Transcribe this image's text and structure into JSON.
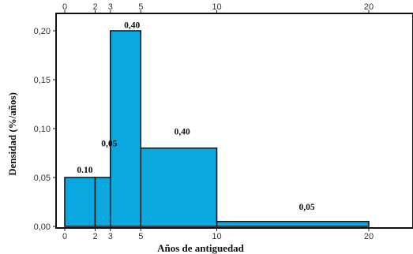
{
  "chart_data": {
    "type": "bar",
    "title": "",
    "xlabel": "Años de antiguedad",
    "ylabel": "Densidad (%/años)",
    "xlim": [
      0,
      20
    ],
    "ylim": [
      0,
      0.2
    ],
    "grid": false,
    "x_ticks": [
      0,
      2,
      3,
      5,
      10,
      20
    ],
    "y_ticks": [
      "0,00",
      "0,05",
      "0,10",
      "0,15",
      "0,20"
    ],
    "y_tick_values": [
      0,
      0.05,
      0.1,
      0.15,
      0.2
    ],
    "bars": [
      {
        "x0": 0,
        "x1": 2,
        "density": 0.05
      },
      {
        "x0": 2,
        "x1": 3,
        "density": 0.05
      },
      {
        "x0": 3,
        "x1": 5,
        "density": 0.2
      },
      {
        "x0": 5,
        "x1": 10,
        "density": 0.08
      },
      {
        "x0": 10,
        "x1": 20,
        "density": 0.005
      }
    ],
    "annotations": [
      {
        "text": "0.10",
        "x": 0.8,
        "y": 0.055
      },
      {
        "text": "0,05",
        "x": 2.4,
        "y": 0.082
      },
      {
        "text": "0,40",
        "x": 3.9,
        "y": 0.203
      },
      {
        "text": "0,40",
        "x": 7.2,
        "y": 0.094
      },
      {
        "text": "0,05",
        "x": 15.4,
        "y": 0.017
      }
    ],
    "bar_color": "#0aa8e0",
    "bar_stroke": "#1a1a1a"
  }
}
